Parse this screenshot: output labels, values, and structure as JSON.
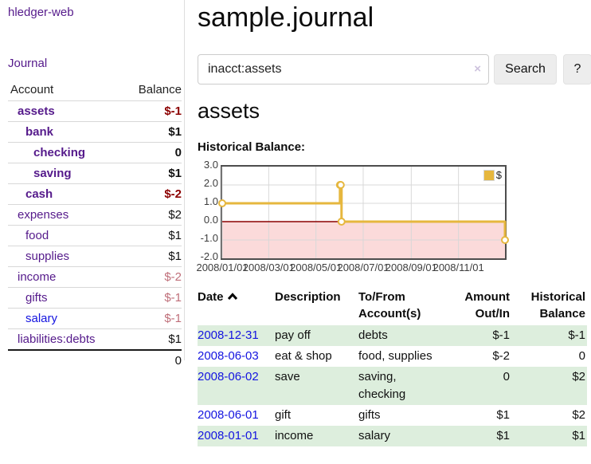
{
  "colors": {
    "link_purple": "#551a8b",
    "link_blue": "#1414e0",
    "negative_strong": "#8b0000",
    "negative_light": "#bf6e79",
    "row_highlight_green": "#ddeedd",
    "chart_line_gold": "#e6b73e",
    "chart_below_zero_pink": "#fbdada",
    "chart_zero_line_red": "#8b0000",
    "chart_grid_gray": "#d8d8d8",
    "chart_border_gray": "#4d4d4d"
  },
  "sidebar": {
    "brand": "hledger-web",
    "nav": "Journal",
    "header": {
      "account": "Account",
      "balance": "Balance"
    },
    "accounts": [
      {
        "name": "assets",
        "balance": "$-1",
        "depth": 1,
        "bold": true,
        "balance_tone": "negative"
      },
      {
        "name": "bank",
        "balance": "$1",
        "depth": 2,
        "bold": true,
        "balance_tone": "normal"
      },
      {
        "name": "checking",
        "balance": "0",
        "depth": 3,
        "bold": true,
        "balance_tone": "normal"
      },
      {
        "name": "saving",
        "balance": "$1",
        "depth": 3,
        "bold": true,
        "balance_tone": "normal"
      },
      {
        "name": "cash",
        "balance": "$-2",
        "depth": 2,
        "bold": true,
        "balance_tone": "negative"
      },
      {
        "name": "expenses",
        "balance": "$2",
        "depth": 1,
        "bold": false,
        "balance_tone": "normal"
      },
      {
        "name": "food",
        "balance": "$1",
        "depth": 2,
        "bold": false,
        "balance_tone": "normal"
      },
      {
        "name": "supplies",
        "balance": "$1",
        "depth": 2,
        "bold": false,
        "balance_tone": "normal"
      },
      {
        "name": "income",
        "balance": "$-2",
        "depth": 1,
        "bold": false,
        "balance_tone": "negative-light"
      },
      {
        "name": "gifts",
        "balance": "$-1",
        "depth": 2,
        "bold": false,
        "balance_tone": "negative-light"
      },
      {
        "name": "salary",
        "balance": "$-1",
        "depth": 2,
        "bold": false,
        "balance_tone": "negative-light",
        "link_tone": "blue"
      },
      {
        "name": "liabilities:debts",
        "balance": "$1",
        "depth": 1,
        "bold": false,
        "balance_tone": "normal"
      }
    ],
    "total": "0"
  },
  "main": {
    "title": "sample.journal",
    "search": {
      "value": "inacct:assets",
      "clear_icon": "×",
      "search_button": "Search",
      "help_button": "?"
    },
    "section_title": "assets",
    "chart_title": "Historical Balance:"
  },
  "chart_data": {
    "type": "line",
    "style": "step",
    "title": "Historical Balance",
    "legend": [
      {
        "label": "$",
        "color": "#e6b73e"
      }
    ],
    "x_range": [
      "2008-01-01",
      "2008-12-31"
    ],
    "ylim": [
      -2,
      3
    ],
    "y_ticks": [
      {
        "v": 3,
        "label": "3.0"
      },
      {
        "v": 2,
        "label": "2.0"
      },
      {
        "v": 1,
        "label": "1.0"
      },
      {
        "v": 0,
        "label": "0.0"
      },
      {
        "v": -1,
        "label": "-1.0"
      },
      {
        "v": -2,
        "label": "-2.0"
      }
    ],
    "x_ticks": [
      {
        "date": "2008-01-01",
        "label": "2008/01/01"
      },
      {
        "date": "2008-03-01",
        "label": "2008/03/01"
      },
      {
        "date": "2008-05-01",
        "label": "2008/05/01"
      },
      {
        "date": "2008-07-01",
        "label": "2008/07/01"
      },
      {
        "date": "2008-09-01",
        "label": "2008/09/01"
      },
      {
        "date": "2008-11-01",
        "label": "2008/11/01"
      }
    ],
    "series": [
      {
        "name": "$",
        "points": [
          [
            "2008-01-01",
            1
          ],
          [
            "2008-06-01",
            2
          ],
          [
            "2008-06-02",
            2
          ],
          [
            "2008-06-03",
            0
          ],
          [
            "2008-12-31",
            -1
          ]
        ]
      }
    ],
    "grid": true,
    "legend_position": "top-right",
    "below_zero_fill": "#fbdada",
    "zero_line_color": "#8b0000"
  },
  "table": {
    "headers": {
      "date": "Date",
      "sort_icon": "chevron-up",
      "description": "Description",
      "accounts_lines": [
        "To/From",
        "Account(s)"
      ],
      "amount_lines": [
        "Amount",
        "Out/In"
      ],
      "balance_lines": [
        "Historical",
        "Balance"
      ]
    },
    "rows": [
      {
        "date": "2008-12-31",
        "description": "pay off",
        "accounts": "debts",
        "amount": "$-1",
        "balance": "$-1",
        "highlight": true
      },
      {
        "date": "2008-06-03",
        "description": "eat & shop",
        "accounts": "food, supplies",
        "amount": "$-2",
        "balance": "0",
        "highlight": false
      },
      {
        "date": "2008-06-02",
        "description": "save",
        "accounts": "saving, checking",
        "amount": "0",
        "balance": "$2",
        "highlight": true
      },
      {
        "date": "2008-06-01",
        "description": "gift",
        "accounts": "gifts",
        "amount": "$1",
        "balance": "$2",
        "highlight": false
      },
      {
        "date": "2008-01-01",
        "description": "income",
        "accounts": "salary",
        "amount": "$1",
        "balance": "$1",
        "highlight": true
      }
    ]
  }
}
